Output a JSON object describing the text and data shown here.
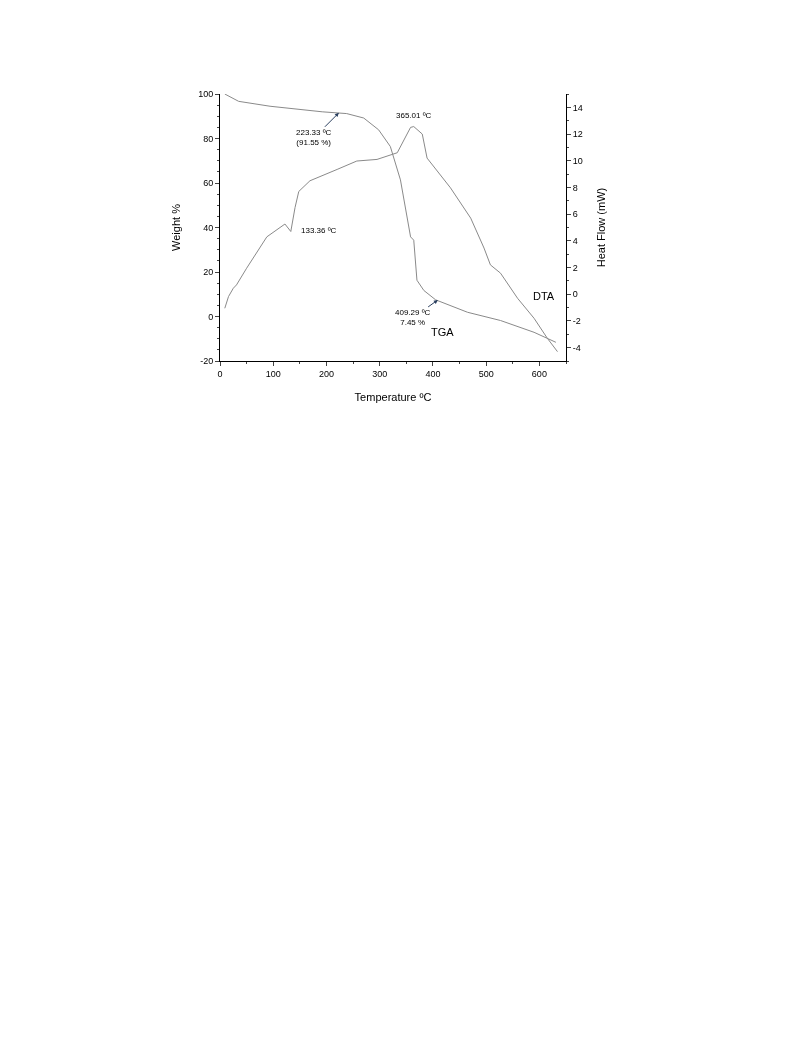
{
  "chart_data": {
    "type": "line",
    "xlabel": "Temperature ºC",
    "ylabel": "Weight %",
    "y2label": "Heat Flow (mW)",
    "xlim": [
      0,
      650
    ],
    "xticks": [
      0,
      100,
      200,
      300,
      400,
      500,
      600
    ],
    "ylim": [
      -20,
      100
    ],
    "yticks": [
      -20,
      0,
      20,
      40,
      60,
      80,
      100
    ],
    "y2lim": [
      -5,
      15
    ],
    "y2ticks": [
      -4,
      -2,
      0,
      2,
      4,
      6,
      8,
      10,
      12,
      14
    ],
    "legend": false,
    "marker": "none",
    "line_style": "solid",
    "series": [
      {
        "name": "TGA",
        "color": "#8a8a8a",
        "x": [
          9,
          35,
          94,
          192,
          238,
          270,
          298,
          320,
          339,
          358,
          364,
          370,
          383,
          405,
          465,
          527,
          590,
          631
        ],
        "values": [
          100,
          96.7,
          94.5,
          92,
          91.2,
          89.2,
          83.9,
          76.4,
          61.4,
          35.8,
          34.3,
          16.3,
          11.7,
          7.5,
          1.9,
          -1.8,
          -7.1,
          -11.6
        ]
      },
      {
        "name": "DTA",
        "color": "#8a8a8a",
        "axis": "y2",
        "x": [
          9,
          16,
          25,
          31,
          50,
          88,
          122,
          133,
          141,
          148,
          169,
          220,
          257,
          295,
          333,
          358,
          364,
          380,
          389,
          433,
          471,
          496,
          508,
          527,
          559,
          590,
          615,
          634
        ],
        "values": [
          -1.05,
          -0.17,
          0.45,
          0.7,
          1.95,
          4.3,
          5.26,
          4.7,
          6.5,
          7.7,
          8.5,
          9.35,
          9.98,
          10.1,
          10.6,
          12.5,
          12.56,
          12.0,
          10.2,
          7.97,
          5.7,
          3.46,
          2.2,
          1.58,
          -0.3,
          -1.8,
          -3.3,
          -4.3
        ]
      }
    ],
    "annotations": [
      {
        "text": "223.33 ºC\n(91.55 %)",
        "x": 223.33,
        "y": 91.55
      },
      {
        "text": "365.01 ºC",
        "x": 365.01,
        "y": 85.9
      },
      {
        "text": "133.36 ºC",
        "x": 133.36,
        "y": 38.8
      },
      {
        "text": "409.29 ºC\n7.45 %",
        "x": 409.29,
        "y": 7.45
      }
    ]
  }
}
